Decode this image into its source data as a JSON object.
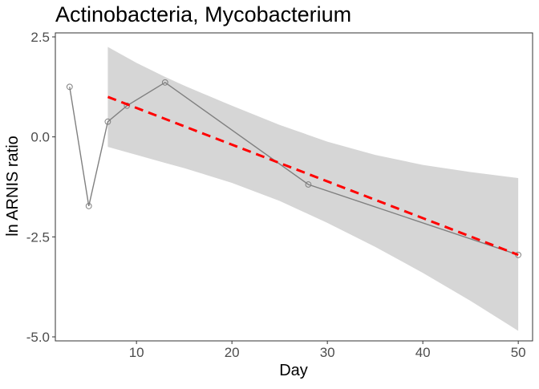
{
  "chart_data": {
    "type": "line",
    "title": "Actinobacteria, Mycobacterium",
    "xlabel": "Day",
    "ylabel": "ln ARNIS ratio",
    "xlim": [
      1.5,
      51.5
    ],
    "ylim": [
      -5.1,
      2.6
    ],
    "x_ticks": [
      10,
      20,
      30,
      40,
      50
    ],
    "x_tick_labels": [
      "10",
      "20",
      "30",
      "40",
      "50"
    ],
    "y_ticks": [
      2.5,
      0.0,
      -2.5,
      -5.0
    ],
    "y_tick_labels": [
      "2.5",
      "0.0",
      "-2.5",
      "-5.0"
    ],
    "grid": false,
    "series": [
      {
        "x": [
          3,
          5,
          7,
          9,
          13,
          28,
          50
        ],
        "y": [
          1.25,
          -1.73,
          0.38,
          0.78,
          1.36,
          -1.19,
          -2.95
        ],
        "color": "#808080",
        "markers": "open-circle"
      }
    ],
    "trend_line": {
      "x": [
        7,
        50
      ],
      "y": [
        1.0,
        -2.95
      ],
      "color": "#ff0000",
      "style": "dashed"
    },
    "confidence_band": {
      "x": [
        7,
        10,
        13,
        15,
        20,
        25,
        30,
        35,
        40,
        45,
        50
      ],
      "lower": [
        -0.25,
        -0.45,
        -0.65,
        -0.78,
        -1.15,
        -1.6,
        -2.15,
        -2.75,
        -3.4,
        -4.1,
        -4.85
      ],
      "upper": [
        2.25,
        1.85,
        1.5,
        1.28,
        0.78,
        0.3,
        -0.12,
        -0.45,
        -0.7,
        -0.88,
        -1.03
      ],
      "color": "#d6d6d6"
    }
  }
}
